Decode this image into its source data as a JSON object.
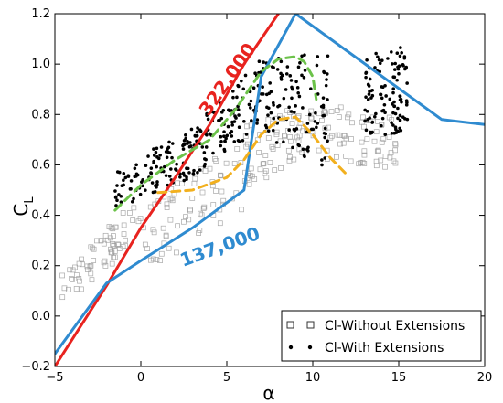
{
  "chart_data": {
    "type": "scatter",
    "title": "",
    "xlabel": "α",
    "ylabel": "C",
    "ylabel_subscript": "L",
    "xlim": [
      -5,
      20
    ],
    "ylim": [
      -0.2,
      1.2
    ],
    "xticks": [
      "−5",
      "0",
      "5",
      "10",
      "15",
      "20"
    ],
    "yticks": [
      "−0.2",
      "0.0",
      "0.2",
      "0.4",
      "0.6",
      "0.8",
      "1.0",
      "1.2"
    ],
    "grid": false,
    "legend_position": "bottom-right",
    "series": [
      {
        "name": "Cl-Without Extensions",
        "marker": "open-square",
        "color": "#9a9a9a",
        "clusters": [
          {
            "x": [
              -5,
              0
            ],
            "y_low": [
              0.02,
              0.3
            ],
            "y_high": [
              0.14,
              0.48
            ]
          },
          {
            "x": [
              0,
              6
            ],
            "y_low": [
              0.16,
              0.42
            ],
            "y_high": [
              0.44,
              0.7
            ]
          },
          {
            "x": [
              6,
              10
            ],
            "y_low": [
              0.5,
              0.65
            ],
            "y_high": [
              0.75,
              0.86
            ]
          },
          {
            "x": [
              10,
              15
            ],
            "y_low": [
              0.63,
              0.58
            ],
            "y_high": [
              0.86,
              0.78
            ]
          }
        ]
      },
      {
        "name": "Cl-With Extensions",
        "marker": "dot",
        "color": "#000000",
        "clusters": [
          {
            "x": [
              -1.5,
              3
            ],
            "y_low": [
              0.42,
              0.55
            ],
            "y_high": [
              0.58,
              0.75
            ]
          },
          {
            "x": [
              3,
              7
            ],
            "y_low": [
              0.55,
              0.75
            ],
            "y_high": [
              0.75,
              1.03
            ]
          },
          {
            "x": [
              7,
              11
            ],
            "y_low": [
              0.72,
              0.58
            ],
            "y_high": [
              1.03,
              1.06
            ]
          },
          {
            "x": [
              13,
              15.5
            ],
            "y_low": [
              0.72,
              0.72
            ],
            "y_high": [
              1.03,
              1.08
            ]
          }
        ]
      }
    ],
    "curves": [
      {
        "label": "322,000",
        "color": "#e8231f",
        "x": [
          -5,
          -2,
          0,
          2,
          4,
          6,
          8
        ],
        "y": [
          -0.2,
          0.12,
          0.35,
          0.55,
          0.76,
          1.0,
          1.2
        ]
      },
      {
        "label": "137,000",
        "color": "#2f8bd0",
        "x": [
          -5,
          -2,
          0,
          3,
          6,
          7,
          9,
          17.5,
          20
        ],
        "y": [
          -0.15,
          0.13,
          0.22,
          0.35,
          0.5,
          0.95,
          1.2,
          0.78,
          0.76
        ]
      },
      {
        "label": "",
        "color": "#6cc24a",
        "dashed": true,
        "x": [
          -1.5,
          0,
          2,
          4,
          5.5,
          7,
          8,
          9,
          9.5,
          10,
          10.2
        ],
        "y": [
          0.42,
          0.52,
          0.62,
          0.7,
          0.82,
          0.97,
          1.02,
          1.03,
          1.01,
          0.95,
          0.86
        ]
      },
      {
        "label": "",
        "color": "#f2b01e",
        "dashed": true,
        "x": [
          1,
          3,
          5,
          6,
          7,
          8,
          9,
          10,
          11,
          12
        ],
        "y": [
          0.49,
          0.5,
          0.55,
          0.62,
          0.72,
          0.78,
          0.79,
          0.72,
          0.63,
          0.56
        ]
      }
    ]
  }
}
